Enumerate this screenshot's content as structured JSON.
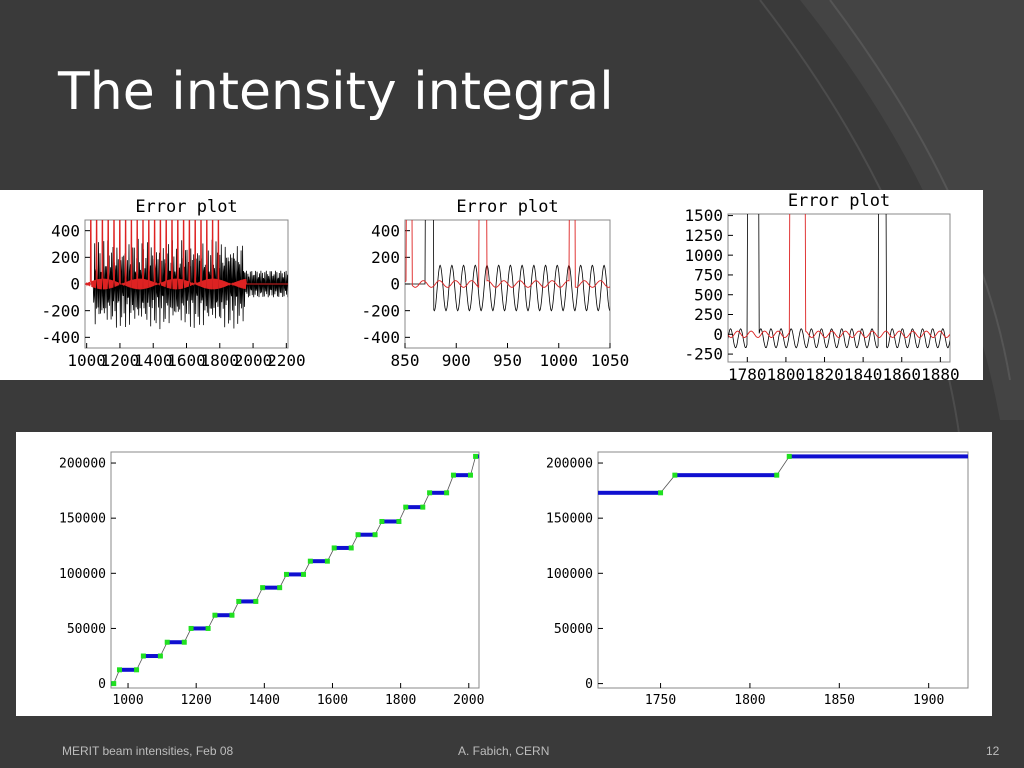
{
  "slide": {
    "title": "The intensity integral",
    "footer_left": "MERIT beam intensities, Feb 08",
    "footer_center": "A. Fabich, CERN",
    "page_number": "12",
    "colors": {
      "background": "#3a3a3a",
      "title": "#ffffff",
      "footer": "#bdbdbd",
      "panel": "#ffffff"
    }
  },
  "chart_data": [
    {
      "type": "line",
      "title": "Error plot",
      "x_ticks": [
        "1000",
        "1200",
        "1400",
        "1600",
        "1800",
        "2000",
        "2200"
      ],
      "x_range": [
        990,
        2210
      ],
      "y_ticks": [
        "400",
        "200",
        "0",
        "-200",
        "-400"
      ],
      "y_values": [
        400,
        200,
        0,
        -200,
        -400
      ],
      "y_range": [
        -480,
        480
      ],
      "series": [
        {
          "color": "#000000",
          "description_values": "oscillation, amplitude ~200-400, damping after 1950"
        },
        {
          "color": "#dd2222",
          "description_values": "near zero with spikes to >400 every ~40 units up to ~1800"
        }
      ]
    },
    {
      "type": "line",
      "title": "Error plot",
      "x_ticks": [
        "850",
        "900",
        "950",
        "1000",
        "1050"
      ],
      "x_range": [
        850,
        1050
      ],
      "y_ticks": [
        "400",
        "200",
        "0",
        "-200",
        "-400"
      ],
      "y_values": [
        400,
        200,
        0,
        -200,
        -400
      ],
      "y_range": [
        -480,
        480
      ],
      "series": [
        {
          "color": "#000000"
        },
        {
          "color": "#dd2222"
        }
      ]
    },
    {
      "type": "line",
      "title": "Error plot",
      "x_ticks": [
        "1780",
        "1800",
        "1820",
        "1840",
        "1860",
        "1880"
      ],
      "x_range": [
        1770,
        1885
      ],
      "y_ticks": [
        "1500",
        "1250",
        "1000",
        "750",
        "500",
        "250",
        "0",
        "-250"
      ],
      "y_values": [
        1500,
        1250,
        1000,
        750,
        500,
        250,
        0,
        -250
      ],
      "y_range": [
        -350,
        1520
      ],
      "series": [
        {
          "color": "#000000"
        },
        {
          "color": "#dd2222"
        }
      ]
    },
    {
      "type": "scatter",
      "x_ticks": [
        "1000",
        "1200",
        "1400",
        "1600",
        "1800",
        "2000"
      ],
      "x_range": [
        950,
        2030
      ],
      "y_ticks": [
        "200000",
        "150000",
        "100000",
        "50000",
        "0"
      ],
      "y_values": [
        200000,
        150000,
        100000,
        50000,
        0
      ],
      "y_range": [
        -4000,
        210000
      ],
      "colors": {
        "plateau": "#1010d0",
        "step": "#20e020",
        "line": "#555555"
      },
      "green_points": [
        [
          958,
          0
        ],
        [
          975,
          12500
        ],
        [
          1025,
          12500
        ],
        [
          1045,
          25000
        ],
        [
          1095,
          25000
        ],
        [
          1115,
          37500
        ],
        [
          1165,
          37500
        ],
        [
          1185,
          50000
        ],
        [
          1235,
          50000
        ],
        [
          1255,
          62000
        ],
        [
          1305,
          62000
        ],
        [
          1325,
          74500
        ],
        [
          1375,
          74500
        ],
        [
          1395,
          87000
        ],
        [
          1445,
          87000
        ],
        [
          1465,
          99000
        ],
        [
          1515,
          99000
        ],
        [
          1535,
          111000
        ],
        [
          1585,
          111000
        ],
        [
          1605,
          123000
        ],
        [
          1655,
          123000
        ],
        [
          1675,
          135000
        ],
        [
          1725,
          135000
        ],
        [
          1745,
          147000
        ],
        [
          1795,
          147000
        ],
        [
          1815,
          160000
        ],
        [
          1865,
          160000
        ],
        [
          1885,
          173000
        ],
        [
          1935,
          173000
        ],
        [
          1955,
          189000
        ],
        [
          2005,
          189000
        ],
        [
          2020,
          206000
        ]
      ],
      "blue_segments": [
        [
          950,
          958,
          0
        ],
        [
          975,
          1025,
          12500
        ],
        [
          1045,
          1095,
          25000
        ],
        [
          1115,
          1165,
          37500
        ],
        [
          1185,
          1235,
          50000
        ],
        [
          1255,
          1305,
          62000
        ],
        [
          1325,
          1375,
          74500
        ],
        [
          1395,
          1445,
          87000
        ],
        [
          1465,
          1515,
          99000
        ],
        [
          1535,
          1585,
          111000
        ],
        [
          1605,
          1655,
          123000
        ],
        [
          1675,
          1725,
          135000
        ],
        [
          1745,
          1795,
          147000
        ],
        [
          1815,
          1865,
          160000
        ],
        [
          1885,
          1935,
          173000
        ],
        [
          1955,
          2005,
          189000
        ],
        [
          2020,
          2030,
          206000
        ]
      ]
    },
    {
      "type": "scatter",
      "x_ticks": [
        "1750",
        "1800",
        "1850",
        "1900"
      ],
      "x_range": [
        1715,
        1922
      ],
      "y_ticks": [
        "200000",
        "150000",
        "100000",
        "50000",
        "0"
      ],
      "y_values": [
        200000,
        150000,
        100000,
        50000,
        0
      ],
      "y_range": [
        -4000,
        210000
      ],
      "colors": {
        "plateau": "#1010d0",
        "step": "#20e020",
        "line": "#555555"
      },
      "green_points": [
        [
          1750,
          173000
        ],
        [
          1758,
          189000
        ],
        [
          1815,
          189000
        ],
        [
          1822,
          206000
        ]
      ],
      "blue_segments": [
        [
          1715,
          1750,
          173000
        ],
        [
          1758,
          1815,
          189000
        ],
        [
          1822,
          1922,
          206000
        ]
      ]
    }
  ]
}
